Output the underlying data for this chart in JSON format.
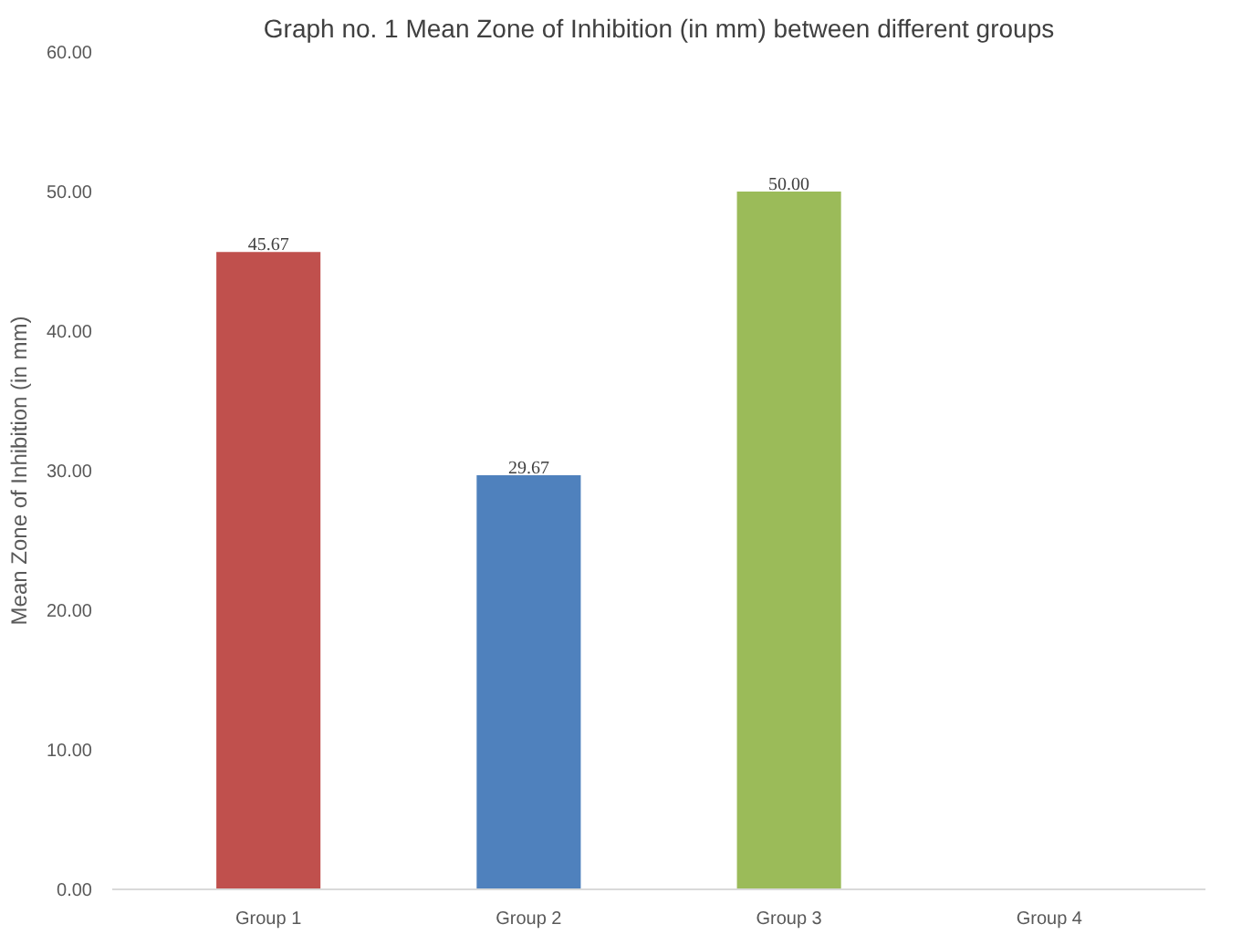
{
  "chart_data": {
    "type": "bar",
    "title": "Graph no. 1 Mean Zone of Inhibition (in mm) between different groups",
    "ylabel": "Mean Zone of Inhibition (in mm)",
    "categories": [
      "Group 1",
      "Group 2",
      "Group 3",
      "Group 4"
    ],
    "values": [
      45.67,
      29.67,
      50.0,
      0
    ],
    "value_labels": [
      "45.67",
      "29.67",
      "50.00",
      null
    ],
    "colors": [
      "#c0504d",
      "#4f81bd",
      "#9bbb59",
      "#8064a2"
    ],
    "ylim": [
      0,
      60
    ],
    "yticks": [
      {
        "value": 0,
        "label": "0.00"
      },
      {
        "value": 10,
        "label": "10.00"
      },
      {
        "value": 20,
        "label": "20.00"
      },
      {
        "value": 30,
        "label": "30.00"
      },
      {
        "value": 40,
        "label": "40.00"
      },
      {
        "value": 50,
        "label": "50.00"
      },
      {
        "value": 60,
        "label": "60.00"
      }
    ],
    "grid": false
  }
}
